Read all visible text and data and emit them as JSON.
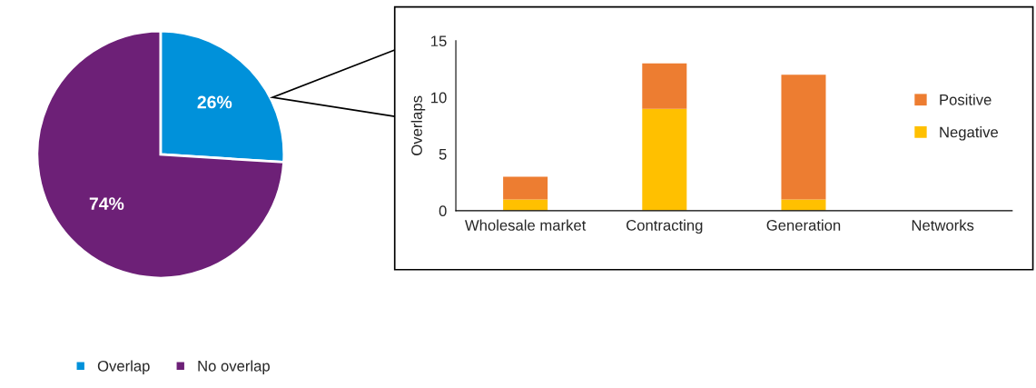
{
  "chart_data": [
    {
      "type": "pie",
      "categories": [
        "Overlap",
        "No overlap"
      ],
      "values": [
        26,
        74
      ],
      "colors": [
        "#0091da",
        "#6d2077"
      ],
      "value_labels": [
        "26%",
        "74%"
      ],
      "legend": "bottom"
    },
    {
      "type": "bar",
      "stacked": true,
      "categories": [
        "Wholesale market",
        "Contracting",
        "Generation",
        "Networks"
      ],
      "ylabel": "Overlaps",
      "ylim": [
        0,
        15
      ],
      "yticks": [
        0,
        5,
        10,
        15
      ],
      "grid": false,
      "legend": "right",
      "series": [
        {
          "name": "Negative",
          "color": "#ffc000",
          "values": [
            1,
            9,
            1,
            0
          ]
        },
        {
          "name": "Positive",
          "color": "#ed7d31",
          "values": [
            2,
            4,
            11,
            0
          ]
        }
      ]
    }
  ]
}
